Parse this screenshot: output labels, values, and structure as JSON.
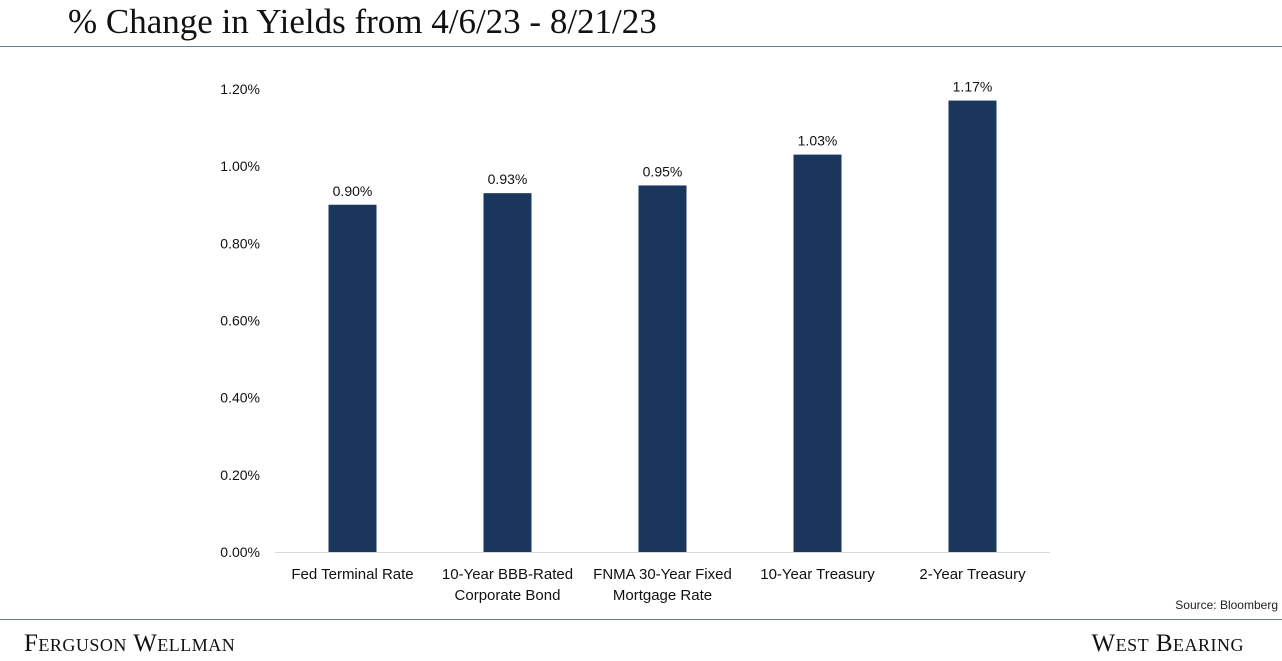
{
  "header": {
    "title": "% Change in Yields from 4/6/23 - 8/21/23"
  },
  "chart_data": {
    "type": "bar",
    "title": "% Change in Yields from 4/6/23 - 8/21/23",
    "xlabel": "",
    "ylabel": "",
    "categories": [
      [
        "Fed Terminal Rate"
      ],
      [
        "10-Year BBB-Rated",
        "Corporate Bond"
      ],
      [
        "FNMA 30-Year Fixed",
        "Mortgage Rate"
      ],
      [
        "10-Year Treasury"
      ],
      [
        "2-Year Treasury"
      ]
    ],
    "values": [
      0.9,
      0.93,
      0.95,
      1.03,
      1.17
    ],
    "data_labels": [
      "0.90%",
      "0.93%",
      "0.95%",
      "1.03%",
      "1.17%"
    ],
    "ylim": [
      0,
      1.2
    ],
    "yticks": [
      0,
      0.2,
      0.4,
      0.6,
      0.8,
      1.0,
      1.2
    ],
    "ytick_labels": [
      "0.00%",
      "0.20%",
      "0.40%",
      "0.60%",
      "0.80%",
      "1.00%",
      "1.20%"
    ],
    "grid": false,
    "legend": "none",
    "bar_color": "#1b365d"
  },
  "source": "Source: Bloomberg",
  "footer": {
    "left": "Ferguson Wellman",
    "right": "West Bearing"
  }
}
